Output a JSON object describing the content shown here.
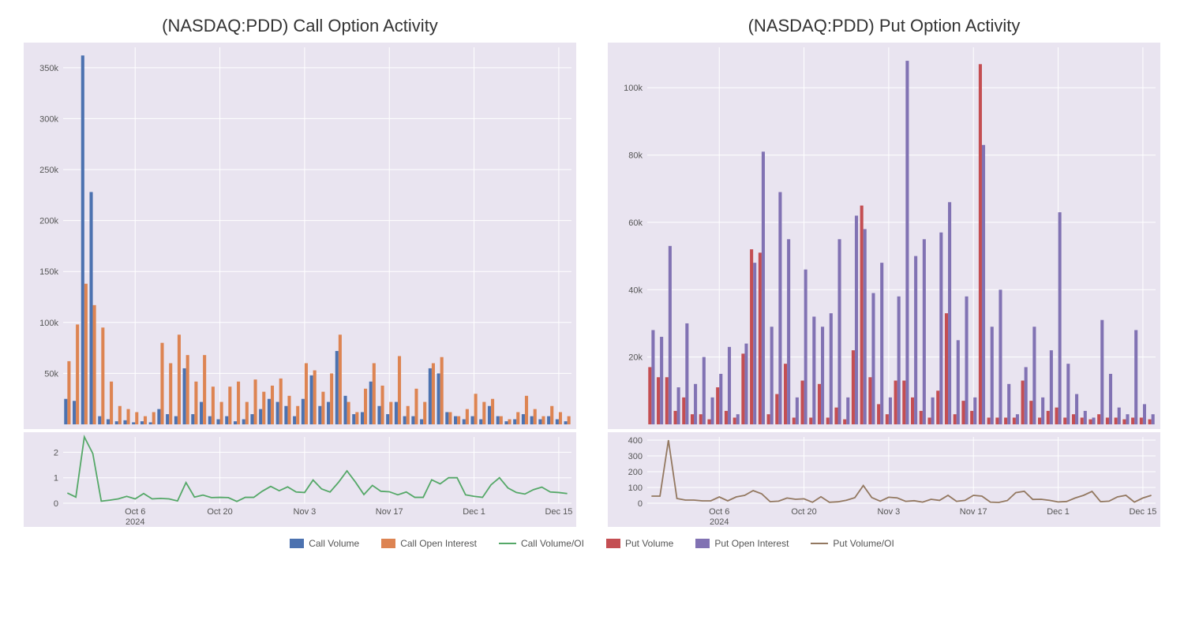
{
  "colors": {
    "plot_bg": "#e9e4f0",
    "grid": "#ffffff",
    "call_volume": "#4c72b0",
    "call_oi": "#dd8452",
    "call_ratio": "#55a868",
    "put_volume": "#c44e52",
    "put_oi": "#8172b3",
    "put_ratio": "#937860",
    "text": "#555555"
  },
  "legend": [
    {
      "type": "box",
      "label": "Call Volume",
      "colorKey": "call_volume"
    },
    {
      "type": "box",
      "label": "Call Open Interest",
      "colorKey": "call_oi"
    },
    {
      "type": "line",
      "label": "Call Volume/OI",
      "colorKey": "call_ratio"
    },
    {
      "type": "box",
      "label": "Put Volume",
      "colorKey": "put_volume"
    },
    {
      "type": "box",
      "label": "Put Open Interest",
      "colorKey": "put_oi"
    },
    {
      "type": "line",
      "label": "Put Volume/OI",
      "colorKey": "put_ratio"
    }
  ],
  "xaxis": {
    "count": 60,
    "ticks": [
      {
        "idx": 8,
        "label": "Oct 6"
      },
      {
        "idx": 18,
        "label": "Oct 20"
      },
      {
        "idx": 28,
        "label": "Nov 3"
      },
      {
        "idx": 38,
        "label": "Nov 17"
      },
      {
        "idx": 48,
        "label": "Dec 1"
      },
      {
        "idx": 58,
        "label": "Dec 15"
      }
    ],
    "year_label": "2024",
    "year_label_idx": 8
  },
  "call": {
    "title": "(NASDAQ:PDD) Call Option Activity",
    "ymax": 370000,
    "yticks": [
      50000,
      100000,
      150000,
      200000,
      250000,
      300000,
      350000
    ],
    "ytick_labels": [
      "50k",
      "100k",
      "150k",
      "200k",
      "250k",
      "300k",
      "350k"
    ],
    "sub_ymax": 2.6,
    "sub_yticks": [
      0,
      1,
      2
    ],
    "volume": [
      25000,
      23000,
      362000,
      228000,
      8000,
      5000,
      3000,
      4000,
      2000,
      3000,
      2000,
      15000,
      10000,
      8000,
      55000,
      10000,
      22000,
      8000,
      5000,
      8000,
      3000,
      5000,
      10000,
      15000,
      25000,
      22000,
      18000,
      8000,
      25000,
      48000,
      18000,
      22000,
      72000,
      28000,
      10000,
      12000,
      42000,
      18000,
      10000,
      22000,
      8000,
      8000,
      5000,
      55000,
      50000,
      12000,
      8000,
      5000,
      8000,
      5000,
      18000,
      8000,
      3000,
      5000,
      10000,
      8000,
      5000,
      8000,
      5000,
      3000
    ],
    "oi": [
      62000,
      98000,
      138000,
      117000,
      95000,
      42000,
      18000,
      15000,
      12000,
      8000,
      12000,
      80000,
      60000,
      88000,
      68000,
      42000,
      68000,
      37000,
      22000,
      37000,
      42000,
      22000,
      44000,
      32000,
      38000,
      45000,
      28000,
      18000,
      60000,
      53000,
      32000,
      50000,
      88000,
      22000,
      12000,
      35000,
      60000,
      38000,
      22000,
      67000,
      18000,
      35000,
      22000,
      60000,
      66000,
      12000,
      8000,
      15000,
      30000,
      22000,
      25000,
      8000,
      5000,
      12000,
      28000,
      15000,
      8000,
      18000,
      12000,
      8000
    ],
    "ratio": [
      0.4,
      0.24,
      2.62,
      1.95,
      0.08,
      0.12,
      0.17,
      0.27,
      0.17,
      0.38,
      0.17,
      0.19,
      0.17,
      0.09,
      0.81,
      0.24,
      0.32,
      0.22,
      0.23,
      0.22,
      0.07,
      0.23,
      0.23,
      0.47,
      0.66,
      0.49,
      0.64,
      0.44,
      0.42,
      0.91,
      0.56,
      0.44,
      0.82,
      1.27,
      0.83,
      0.34,
      0.7,
      0.47,
      0.45,
      0.33,
      0.44,
      0.23,
      0.23,
      0.92,
      0.76,
      1.0,
      1.0,
      0.33,
      0.27,
      0.23,
      0.72,
      1.0,
      0.6,
      0.42,
      0.36,
      0.53,
      0.63,
      0.44,
      0.42,
      0.38
    ]
  },
  "put": {
    "title": "(NASDAQ:PDD) Put Option Activity",
    "ymax": 112000,
    "yticks": [
      20000,
      40000,
      60000,
      80000,
      100000
    ],
    "ytick_labels": [
      "20k",
      "40k",
      "60k",
      "80k",
      "100k"
    ],
    "sub_ymax": 420,
    "sub_yticks": [
      0,
      100,
      200,
      300,
      400
    ],
    "volume": [
      17000,
      14000,
      14000,
      4000,
      8000,
      3000,
      3000,
      1500,
      11000,
      4000,
      2000,
      21000,
      52000,
      51000,
      3000,
      9000,
      18000,
      2000,
      13000,
      2000,
      12000,
      2000,
      5000,
      1500,
      22000,
      65000,
      14000,
      6000,
      3000,
      13000,
      13000,
      8000,
      4000,
      2000,
      10000,
      33000,
      3000,
      7000,
      4000,
      107000,
      2000,
      2000,
      2000,
      2000,
      13000,
      7000,
      2000,
      4000,
      5000,
      2000,
      3000,
      2000,
      1500,
      3000,
      2000,
      2000,
      1500,
      2000,
      2000,
      1500
    ],
    "oi": [
      28000,
      26000,
      53000,
      11000,
      30000,
      12000,
      20000,
      8000,
      15000,
      23000,
      3000,
      24000,
      48000,
      81000,
      29000,
      69000,
      55000,
      8000,
      46000,
      32000,
      29000,
      33000,
      55000,
      8000,
      62000,
      58000,
      39000,
      48000,
      8000,
      38000,
      108000,
      50000,
      55000,
      8000,
      57000,
      66000,
      25000,
      38000,
      8000,
      83000,
      29000,
      40000,
      12000,
      3000,
      17000,
      29000,
      8000,
      22000,
      63000,
      18000,
      9000,
      4000,
      2000,
      31000,
      15000,
      5000,
      3000,
      28000,
      6000,
      3000
    ],
    "ratio": [
      45,
      45,
      400,
      30,
      20,
      20,
      15,
      15,
      40,
      15,
      40,
      50,
      80,
      60,
      10,
      13,
      33,
      25,
      28,
      6,
      41,
      6,
      9,
      19,
      35,
      112,
      36,
      13,
      38,
      34,
      12,
      16,
      7,
      25,
      18,
      50,
      12,
      18,
      50,
      45,
      7,
      5,
      17,
      67,
      76,
      24,
      25,
      18,
      8,
      11,
      33,
      50,
      75,
      10,
      13,
      40,
      50,
      7,
      33,
      50
    ]
  }
}
